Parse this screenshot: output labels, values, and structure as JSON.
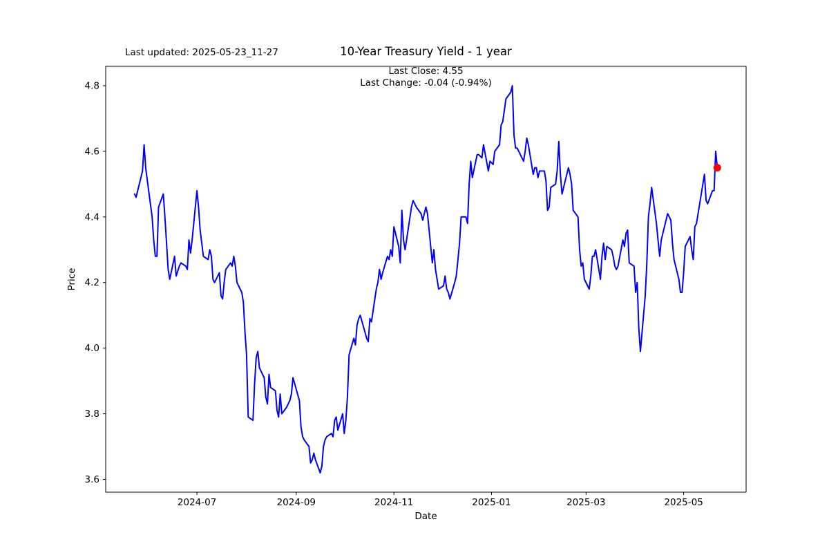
{
  "header": {
    "last_updated": "Last updated: 2025-05-23_11-27"
  },
  "chart_data": {
    "type": "line",
    "title": "10-Year Treasury Yield - 1 year",
    "xlabel": "Date",
    "ylabel": "Price",
    "annotations": {
      "last_close": "Last Close: 4.55",
      "last_change": "Last Change: -0.04 (-0.94%)"
    },
    "grid": false,
    "legend_position": "none",
    "line_color": "#0000FF",
    "marker_color": "#FF0000",
    "axis_color": "#000000",
    "xlim": [
      "2024-05-05",
      "2025-06-09"
    ],
    "ylim": [
      3.561,
      4.859
    ],
    "x_ticks": [
      {
        "label": "2024-07",
        "date": "2024-07-01"
      },
      {
        "label": "2024-09",
        "date": "2024-09-01"
      },
      {
        "label": "2024-11",
        "date": "2024-11-01"
      },
      {
        "label": "2025-01",
        "date": "2025-01-01"
      },
      {
        "label": "2025-03",
        "date": "2025-03-01"
      },
      {
        "label": "2025-05",
        "date": "2025-05-01"
      }
    ],
    "y_ticks": [
      3.6,
      3.8,
      4.0,
      4.2,
      4.4,
      4.6,
      4.8
    ],
    "last_point": {
      "date": "2025-05-22",
      "value": 4.55
    },
    "series": [
      {
        "name": "10-Year Treasury Yield",
        "points": [
          [
            "2024-05-23",
            4.47
          ],
          [
            "2024-05-24",
            4.46
          ],
          [
            "2024-05-28",
            4.54
          ],
          [
            "2024-05-29",
            4.62
          ],
          [
            "2024-05-30",
            4.55
          ],
          [
            "2024-05-31",
            4.51
          ],
          [
            "2024-06-03",
            4.4
          ],
          [
            "2024-06-04",
            4.33
          ],
          [
            "2024-06-05",
            4.28
          ],
          [
            "2024-06-06",
            4.28
          ],
          [
            "2024-06-07",
            4.43
          ],
          [
            "2024-06-10",
            4.47
          ],
          [
            "2024-06-11",
            4.4
          ],
          [
            "2024-06-12",
            4.32
          ],
          [
            "2024-06-13",
            4.24
          ],
          [
            "2024-06-14",
            4.21
          ],
          [
            "2024-06-17",
            4.28
          ],
          [
            "2024-06-18",
            4.22
          ],
          [
            "2024-06-20",
            4.25
          ],
          [
            "2024-06-21",
            4.26
          ],
          [
            "2024-06-24",
            4.25
          ],
          [
            "2024-06-25",
            4.24
          ],
          [
            "2024-06-26",
            4.33
          ],
          [
            "2024-06-27",
            4.29
          ],
          [
            "2024-06-28",
            4.33
          ],
          [
            "2024-07-01",
            4.48
          ],
          [
            "2024-07-02",
            4.43
          ],
          [
            "2024-07-03",
            4.36
          ],
          [
            "2024-07-05",
            4.28
          ],
          [
            "2024-07-08",
            4.27
          ],
          [
            "2024-07-09",
            4.3
          ],
          [
            "2024-07-10",
            4.28
          ],
          [
            "2024-07-11",
            4.21
          ],
          [
            "2024-07-12",
            4.2
          ],
          [
            "2024-07-15",
            4.23
          ],
          [
            "2024-07-16",
            4.16
          ],
          [
            "2024-07-17",
            4.15
          ],
          [
            "2024-07-18",
            4.2
          ],
          [
            "2024-07-19",
            4.24
          ],
          [
            "2024-07-22",
            4.26
          ],
          [
            "2024-07-23",
            4.25
          ],
          [
            "2024-07-24",
            4.28
          ],
          [
            "2024-07-25",
            4.25
          ],
          [
            "2024-07-26",
            4.2
          ],
          [
            "2024-07-29",
            4.17
          ],
          [
            "2024-07-30",
            4.14
          ],
          [
            "2024-07-31",
            4.05
          ],
          [
            "2024-08-01",
            3.98
          ],
          [
            "2024-08-02",
            3.79
          ],
          [
            "2024-08-05",
            3.78
          ],
          [
            "2024-08-06",
            3.89
          ],
          [
            "2024-08-07",
            3.97
          ],
          [
            "2024-08-08",
            3.99
          ],
          [
            "2024-08-09",
            3.94
          ],
          [
            "2024-08-12",
            3.91
          ],
          [
            "2024-08-13",
            3.85
          ],
          [
            "2024-08-14",
            3.83
          ],
          [
            "2024-08-15",
            3.92
          ],
          [
            "2024-08-16",
            3.88
          ],
          [
            "2024-08-19",
            3.87
          ],
          [
            "2024-08-20",
            3.81
          ],
          [
            "2024-08-21",
            3.79
          ],
          [
            "2024-08-22",
            3.86
          ],
          [
            "2024-08-23",
            3.8
          ],
          [
            "2024-08-26",
            3.82
          ],
          [
            "2024-08-27",
            3.83
          ],
          [
            "2024-08-28",
            3.84
          ],
          [
            "2024-08-29",
            3.86
          ],
          [
            "2024-08-30",
            3.91
          ],
          [
            "2024-09-03",
            3.84
          ],
          [
            "2024-09-04",
            3.76
          ],
          [
            "2024-09-05",
            3.73
          ],
          [
            "2024-09-06",
            3.72
          ],
          [
            "2024-09-09",
            3.7
          ],
          [
            "2024-09-10",
            3.65
          ],
          [
            "2024-09-11",
            3.66
          ],
          [
            "2024-09-12",
            3.68
          ],
          [
            "2024-09-13",
            3.66
          ],
          [
            "2024-09-16",
            3.62
          ],
          [
            "2024-09-17",
            3.64
          ],
          [
            "2024-09-18",
            3.7
          ],
          [
            "2024-09-19",
            3.72
          ],
          [
            "2024-09-20",
            3.73
          ],
          [
            "2024-09-23",
            3.74
          ],
          [
            "2024-09-24",
            3.73
          ],
          [
            "2024-09-25",
            3.78
          ],
          [
            "2024-09-26",
            3.79
          ],
          [
            "2024-09-27",
            3.75
          ],
          [
            "2024-09-30",
            3.8
          ],
          [
            "2024-10-01",
            3.74
          ],
          [
            "2024-10-02",
            3.78
          ],
          [
            "2024-10-03",
            3.85
          ],
          [
            "2024-10-04",
            3.98
          ],
          [
            "2024-10-07",
            4.03
          ],
          [
            "2024-10-08",
            4.01
          ],
          [
            "2024-10-09",
            4.07
          ],
          [
            "2024-10-10",
            4.09
          ],
          [
            "2024-10-11",
            4.1
          ],
          [
            "2024-10-15",
            4.03
          ],
          [
            "2024-10-16",
            4.02
          ],
          [
            "2024-10-17",
            4.09
          ],
          [
            "2024-10-18",
            4.08
          ],
          [
            "2024-10-21",
            4.18
          ],
          [
            "2024-10-22",
            4.2
          ],
          [
            "2024-10-23",
            4.24
          ],
          [
            "2024-10-24",
            4.21
          ],
          [
            "2024-10-25",
            4.23
          ],
          [
            "2024-10-28",
            4.28
          ],
          [
            "2024-10-29",
            4.27
          ],
          [
            "2024-10-30",
            4.3
          ],
          [
            "2024-10-31",
            4.28
          ],
          [
            "2024-11-01",
            4.37
          ],
          [
            "2024-11-04",
            4.31
          ],
          [
            "2024-11-05",
            4.26
          ],
          [
            "2024-11-06",
            4.42
          ],
          [
            "2024-11-07",
            4.33
          ],
          [
            "2024-11-08",
            4.3
          ],
          [
            "2024-11-12",
            4.43
          ],
          [
            "2024-11-13",
            4.45
          ],
          [
            "2024-11-14",
            4.44
          ],
          [
            "2024-11-15",
            4.43
          ],
          [
            "2024-11-18",
            4.41
          ],
          [
            "2024-11-19",
            4.39
          ],
          [
            "2024-11-20",
            4.41
          ],
          [
            "2024-11-21",
            4.43
          ],
          [
            "2024-11-22",
            4.41
          ],
          [
            "2024-11-25",
            4.26
          ],
          [
            "2024-11-26",
            4.3
          ],
          [
            "2024-11-27",
            4.24
          ],
          [
            "2024-11-29",
            4.18
          ],
          [
            "2024-12-02",
            4.19
          ],
          [
            "2024-12-03",
            4.22
          ],
          [
            "2024-12-04",
            4.18
          ],
          [
            "2024-12-05",
            4.17
          ],
          [
            "2024-12-06",
            4.15
          ],
          [
            "2024-12-09",
            4.2
          ],
          [
            "2024-12-10",
            4.22
          ],
          [
            "2024-12-11",
            4.27
          ],
          [
            "2024-12-12",
            4.32
          ],
          [
            "2024-12-13",
            4.4
          ],
          [
            "2024-12-16",
            4.4
          ],
          [
            "2024-12-17",
            4.38
          ],
          [
            "2024-12-18",
            4.5
          ],
          [
            "2024-12-19",
            4.57
          ],
          [
            "2024-12-20",
            4.52
          ],
          [
            "2024-12-23",
            4.59
          ],
          [
            "2024-12-24",
            4.59
          ],
          [
            "2024-12-26",
            4.58
          ],
          [
            "2024-12-27",
            4.62
          ],
          [
            "2024-12-30",
            4.54
          ],
          [
            "2024-12-31",
            4.57
          ],
          [
            "2025-01-02",
            4.56
          ],
          [
            "2025-01-03",
            4.6
          ],
          [
            "2025-01-06",
            4.62
          ],
          [
            "2025-01-07",
            4.68
          ],
          [
            "2025-01-08",
            4.69
          ],
          [
            "2025-01-10",
            4.76
          ],
          [
            "2025-01-13",
            4.78
          ],
          [
            "2025-01-14",
            4.8
          ],
          [
            "2025-01-15",
            4.65
          ],
          [
            "2025-01-16",
            4.61
          ],
          [
            "2025-01-17",
            4.61
          ],
          [
            "2025-01-21",
            4.57
          ],
          [
            "2025-01-22",
            4.6
          ],
          [
            "2025-01-23",
            4.64
          ],
          [
            "2025-01-24",
            4.62
          ],
          [
            "2025-01-27",
            4.53
          ],
          [
            "2025-01-28",
            4.55
          ],
          [
            "2025-01-29",
            4.55
          ],
          [
            "2025-01-30",
            4.52
          ],
          [
            "2025-01-31",
            4.54
          ],
          [
            "2025-02-03",
            4.54
          ],
          [
            "2025-02-04",
            4.51
          ],
          [
            "2025-02-05",
            4.42
          ],
          [
            "2025-02-06",
            4.43
          ],
          [
            "2025-02-07",
            4.49
          ],
          [
            "2025-02-10",
            4.5
          ],
          [
            "2025-02-11",
            4.54
          ],
          [
            "2025-02-12",
            4.63
          ],
          [
            "2025-02-13",
            4.53
          ],
          [
            "2025-02-14",
            4.47
          ],
          [
            "2025-02-18",
            4.55
          ],
          [
            "2025-02-19",
            4.53
          ],
          [
            "2025-02-20",
            4.5
          ],
          [
            "2025-02-21",
            4.42
          ],
          [
            "2025-02-24",
            4.4
          ],
          [
            "2025-02-25",
            4.3
          ],
          [
            "2025-02-26",
            4.25
          ],
          [
            "2025-02-27",
            4.26
          ],
          [
            "2025-02-28",
            4.21
          ],
          [
            "2025-03-03",
            4.18
          ],
          [
            "2025-03-04",
            4.22
          ],
          [
            "2025-03-05",
            4.28
          ],
          [
            "2025-03-06",
            4.28
          ],
          [
            "2025-03-07",
            4.3
          ],
          [
            "2025-03-10",
            4.21
          ],
          [
            "2025-03-11",
            4.28
          ],
          [
            "2025-03-12",
            4.32
          ],
          [
            "2025-03-13",
            4.27
          ],
          [
            "2025-03-14",
            4.31
          ],
          [
            "2025-03-17",
            4.3
          ],
          [
            "2025-03-18",
            4.28
          ],
          [
            "2025-03-19",
            4.25
          ],
          [
            "2025-03-20",
            4.24
          ],
          [
            "2025-03-21",
            4.25
          ],
          [
            "2025-03-24",
            4.33
          ],
          [
            "2025-03-25",
            4.31
          ],
          [
            "2025-03-26",
            4.35
          ],
          [
            "2025-03-27",
            4.36
          ],
          [
            "2025-03-28",
            4.26
          ],
          [
            "2025-03-31",
            4.25
          ],
          [
            "2025-04-01",
            4.17
          ],
          [
            "2025-04-02",
            4.2
          ],
          [
            "2025-04-03",
            4.06
          ],
          [
            "2025-04-04",
            3.99
          ],
          [
            "2025-04-07",
            4.16
          ],
          [
            "2025-04-08",
            4.26
          ],
          [
            "2025-04-09",
            4.4
          ],
          [
            "2025-04-10",
            4.44
          ],
          [
            "2025-04-11",
            4.49
          ],
          [
            "2025-04-14",
            4.38
          ],
          [
            "2025-04-15",
            4.33
          ],
          [
            "2025-04-16",
            4.28
          ],
          [
            "2025-04-17",
            4.33
          ],
          [
            "2025-04-21",
            4.41
          ],
          [
            "2025-04-22",
            4.4
          ],
          [
            "2025-04-23",
            4.39
          ],
          [
            "2025-04-24",
            4.32
          ],
          [
            "2025-04-25",
            4.27
          ],
          [
            "2025-04-28",
            4.21
          ],
          [
            "2025-04-29",
            4.17
          ],
          [
            "2025-04-30",
            4.17
          ],
          [
            "2025-05-01",
            4.23
          ],
          [
            "2025-05-02",
            4.31
          ],
          [
            "2025-05-05",
            4.34
          ],
          [
            "2025-05-06",
            4.3
          ],
          [
            "2025-05-07",
            4.27
          ],
          [
            "2025-05-08",
            4.37
          ],
          [
            "2025-05-09",
            4.38
          ],
          [
            "2025-05-12",
            4.47
          ],
          [
            "2025-05-13",
            4.5
          ],
          [
            "2025-05-14",
            4.53
          ],
          [
            "2025-05-15",
            4.45
          ],
          [
            "2025-05-16",
            4.44
          ],
          [
            "2025-05-19",
            4.48
          ],
          [
            "2025-05-20",
            4.48
          ],
          [
            "2025-05-21",
            4.6
          ],
          [
            "2025-05-22",
            4.55
          ]
        ]
      }
    ]
  }
}
